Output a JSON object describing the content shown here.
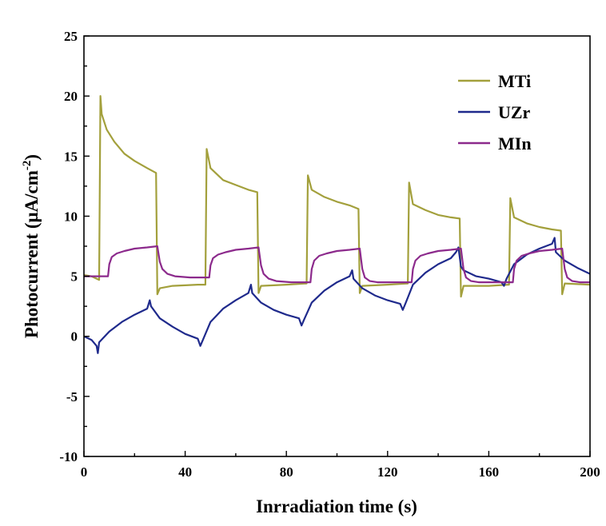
{
  "chart_data": {
    "type": "line",
    "xlabel": "Inrradiation time (s)",
    "ylabel": "Photocurrent (μA/cm⁻²)",
    "ylabel_main": "Photocurrent (",
    "ylabel_unit": "μA/cm",
    "ylabel_sup": "-2",
    "ylabel_close": ")",
    "xlim": [
      0,
      200
    ],
    "ylim": [
      -10,
      25
    ],
    "x_ticks": [
      "0",
      "40",
      "80",
      "120",
      "160",
      "200"
    ],
    "y_ticks": [
      "-10",
      "-5",
      "0",
      "5",
      "10",
      "15",
      "20",
      "25"
    ],
    "legend_position": "top-right",
    "series": [
      {
        "name": "MTi",
        "color": "#A3A03C",
        "points": [
          [
            0,
            5.1
          ],
          [
            3,
            5.0
          ],
          [
            5,
            4.8
          ],
          [
            6,
            4.7
          ],
          [
            6.5,
            20.0
          ],
          [
            7,
            18.5
          ],
          [
            9,
            17.2
          ],
          [
            12,
            16.2
          ],
          [
            16,
            15.2
          ],
          [
            20,
            14.6
          ],
          [
            25,
            14.0
          ],
          [
            28.5,
            13.6
          ],
          [
            29,
            3.5
          ],
          [
            30,
            4.0
          ],
          [
            35,
            4.2
          ],
          [
            45,
            4.3
          ],
          [
            48,
            4.3
          ],
          [
            48.5,
            15.6
          ],
          [
            50,
            14.0
          ],
          [
            55,
            13.0
          ],
          [
            60,
            12.6
          ],
          [
            65,
            12.2
          ],
          [
            68.5,
            12.0
          ],
          [
            69,
            3.6
          ],
          [
            70,
            4.2
          ],
          [
            80,
            4.3
          ],
          [
            88,
            4.4
          ],
          [
            88.5,
            13.4
          ],
          [
            90,
            12.2
          ],
          [
            95,
            11.6
          ],
          [
            100,
            11.2
          ],
          [
            105,
            10.9
          ],
          [
            108.5,
            10.6
          ],
          [
            109,
            3.6
          ],
          [
            110,
            4.2
          ],
          [
            120,
            4.3
          ],
          [
            128,
            4.4
          ],
          [
            128.5,
            12.8
          ],
          [
            130,
            11.0
          ],
          [
            135,
            10.5
          ],
          [
            140,
            10.1
          ],
          [
            145,
            9.9
          ],
          [
            148.5,
            9.8
          ],
          [
            149,
            3.3
          ],
          [
            150,
            4.2
          ],
          [
            160,
            4.2
          ],
          [
            168,
            4.3
          ],
          [
            168.5,
            11.5
          ],
          [
            170,
            9.9
          ],
          [
            175,
            9.4
          ],
          [
            180,
            9.1
          ],
          [
            185,
            8.9
          ],
          [
            188.5,
            8.8
          ],
          [
            189,
            3.5
          ],
          [
            190,
            4.4
          ],
          [
            200,
            4.3
          ]
        ]
      },
      {
        "name": "UZr",
        "color": "#1F2A8C",
        "points": [
          [
            0,
            0.0
          ],
          [
            3,
            -0.3
          ],
          [
            5,
            -0.8
          ],
          [
            5.5,
            -1.4
          ],
          [
            6,
            -0.5
          ],
          [
            10,
            0.4
          ],
          [
            15,
            1.2
          ],
          [
            20,
            1.8
          ],
          [
            25,
            2.3
          ],
          [
            26,
            3.0
          ],
          [
            26.5,
            2.5
          ],
          [
            30,
            1.5
          ],
          [
            35,
            0.8
          ],
          [
            40,
            0.2
          ],
          [
            45,
            -0.2
          ],
          [
            46,
            -0.8
          ],
          [
            47,
            -0.3
          ],
          [
            50,
            1.2
          ],
          [
            55,
            2.3
          ],
          [
            60,
            3.0
          ],
          [
            65,
            3.6
          ],
          [
            66,
            4.3
          ],
          [
            66.5,
            3.6
          ],
          [
            70,
            2.8
          ],
          [
            75,
            2.2
          ],
          [
            80,
            1.8
          ],
          [
            85,
            1.5
          ],
          [
            86,
            0.9
          ],
          [
            87,
            1.4
          ],
          [
            90,
            2.8
          ],
          [
            95,
            3.8
          ],
          [
            100,
            4.5
          ],
          [
            105,
            5.0
          ],
          [
            106,
            5.5
          ],
          [
            106.5,
            4.8
          ],
          [
            110,
            4.0
          ],
          [
            115,
            3.4
          ],
          [
            120,
            3.0
          ],
          [
            125,
            2.7
          ],
          [
            126,
            2.2
          ],
          [
            127,
            2.7
          ],
          [
            130,
            4.3
          ],
          [
            135,
            5.3
          ],
          [
            140,
            6.0
          ],
          [
            145,
            6.5
          ],
          [
            147,
            7.0
          ],
          [
            148,
            7.4
          ],
          [
            149,
            5.8
          ],
          [
            150,
            5.5
          ],
          [
            155,
            5.0
          ],
          [
            160,
            4.8
          ],
          [
            165,
            4.5
          ],
          [
            166,
            4.2
          ],
          [
            167,
            4.8
          ],
          [
            170,
            6.0
          ],
          [
            175,
            6.8
          ],
          [
            180,
            7.3
          ],
          [
            185,
            7.7
          ],
          [
            186,
            8.2
          ],
          [
            186.5,
            7.0
          ],
          [
            190,
            6.3
          ],
          [
            195,
            5.7
          ],
          [
            200,
            5.2
          ]
        ]
      },
      {
        "name": "MIn",
        "color": "#8C2A8C",
        "points": [
          [
            0,
            5.0
          ],
          [
            9,
            5.0
          ],
          [
            9.5,
            5.0
          ],
          [
            10,
            6.0
          ],
          [
            11,
            6.6
          ],
          [
            13,
            6.9
          ],
          [
            16,
            7.1
          ],
          [
            20,
            7.3
          ],
          [
            25,
            7.4
          ],
          [
            29,
            7.5
          ],
          [
            30,
            6.2
          ],
          [
            31,
            5.6
          ],
          [
            33,
            5.2
          ],
          [
            36,
            5.0
          ],
          [
            42,
            4.9
          ],
          [
            49,
            4.9
          ],
          [
            49.5,
            4.9
          ],
          [
            50,
            5.9
          ],
          [
            51,
            6.5
          ],
          [
            53,
            6.8
          ],
          [
            56,
            7.0
          ],
          [
            60,
            7.2
          ],
          [
            65,
            7.3
          ],
          [
            69,
            7.4
          ],
          [
            70,
            5.9
          ],
          [
            71,
            5.2
          ],
          [
            73,
            4.8
          ],
          [
            76,
            4.6
          ],
          [
            82,
            4.5
          ],
          [
            89,
            4.5
          ],
          [
            89.5,
            4.5
          ],
          [
            90,
            5.6
          ],
          [
            91,
            6.3
          ],
          [
            93,
            6.7
          ],
          [
            96,
            6.9
          ],
          [
            100,
            7.1
          ],
          [
            105,
            7.2
          ],
          [
            109,
            7.3
          ],
          [
            110,
            5.6
          ],
          [
            111,
            4.9
          ],
          [
            113,
            4.6
          ],
          [
            116,
            4.5
          ],
          [
            122,
            4.5
          ],
          [
            129,
            4.5
          ],
          [
            129.5,
            4.5
          ],
          [
            130,
            5.6
          ],
          [
            131,
            6.3
          ],
          [
            133,
            6.7
          ],
          [
            136,
            6.9
          ],
          [
            140,
            7.1
          ],
          [
            145,
            7.2
          ],
          [
            149,
            7.3
          ],
          [
            150,
            5.6
          ],
          [
            151,
            4.9
          ],
          [
            153,
            4.6
          ],
          [
            156,
            4.5
          ],
          [
            162,
            4.5
          ],
          [
            169,
            4.5
          ],
          [
            169.5,
            4.5
          ],
          [
            170,
            5.6
          ],
          [
            171,
            6.3
          ],
          [
            173,
            6.7
          ],
          [
            176,
            6.9
          ],
          [
            180,
            7.1
          ],
          [
            185,
            7.2
          ],
          [
            189,
            7.3
          ],
          [
            190,
            5.6
          ],
          [
            191,
            4.9
          ],
          [
            193,
            4.6
          ],
          [
            196,
            4.5
          ],
          [
            200,
            4.5
          ]
        ]
      }
    ]
  }
}
